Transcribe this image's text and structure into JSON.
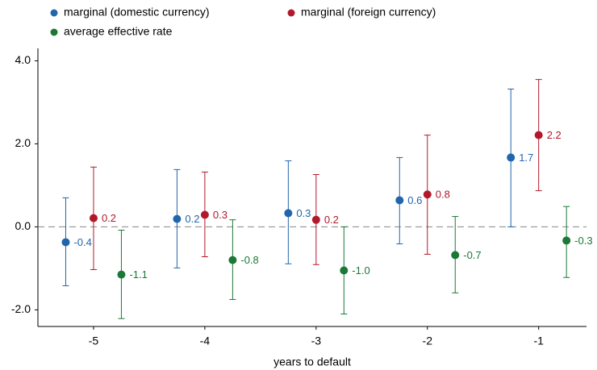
{
  "chart_data": {
    "type": "errorbar",
    "x_label": "years to default",
    "x": [
      -5,
      -4,
      -3,
      -2,
      -1
    ],
    "xlim": [
      -5.5,
      -0.57
    ],
    "xticks": [
      -5,
      -4,
      -3,
      -2,
      -1
    ],
    "ylim": [
      -2.4,
      4.3
    ],
    "yticks": [
      {
        "value": -2,
        "label": "-2.0"
      },
      {
        "value": 0,
        "label": "0.0"
      },
      {
        "value": 2,
        "label": "2.0"
      },
      {
        "value": 4,
        "label": "4.0"
      }
    ],
    "reference_line": 0,
    "series": [
      {
        "name": "marginal (domestic currency)",
        "color": "#2166ac",
        "values": [
          -0.37,
          0.19,
          0.33,
          0.64,
          1.67
        ],
        "value_labels": [
          "-0.4",
          "0.2",
          "0.3",
          "0.6",
          "1.7"
        ],
        "lower": [
          -1.42,
          -0.99,
          -0.89,
          -0.41,
          0.0
        ],
        "upper": [
          0.7,
          1.38,
          1.59,
          1.67,
          3.32
        ]
      },
      {
        "name": "marginal (foreign currency)",
        "color": "#b2182b",
        "values": [
          0.21,
          0.29,
          0.17,
          0.78,
          2.21
        ],
        "value_labels": [
          "0.2",
          "0.3",
          "0.2",
          "0.8",
          "2.2"
        ],
        "lower": [
          -1.03,
          -0.72,
          -0.91,
          -0.66,
          0.87
        ],
        "upper": [
          1.44,
          1.32,
          1.26,
          2.21,
          3.55
        ]
      },
      {
        "name": "average effective rate",
        "color": "#1b7837",
        "values": [
          -1.15,
          -0.8,
          -1.05,
          -0.68,
          -0.33
        ],
        "value_labels": [
          "-1.1",
          "-0.8",
          "-1.0",
          "-0.7",
          "-0.3"
        ],
        "lower": [
          -2.21,
          -1.75,
          -2.1,
          -1.59,
          -1.22
        ],
        "upper": [
          -0.08,
          0.17,
          0.0,
          0.25,
          0.49
        ]
      }
    ]
  }
}
